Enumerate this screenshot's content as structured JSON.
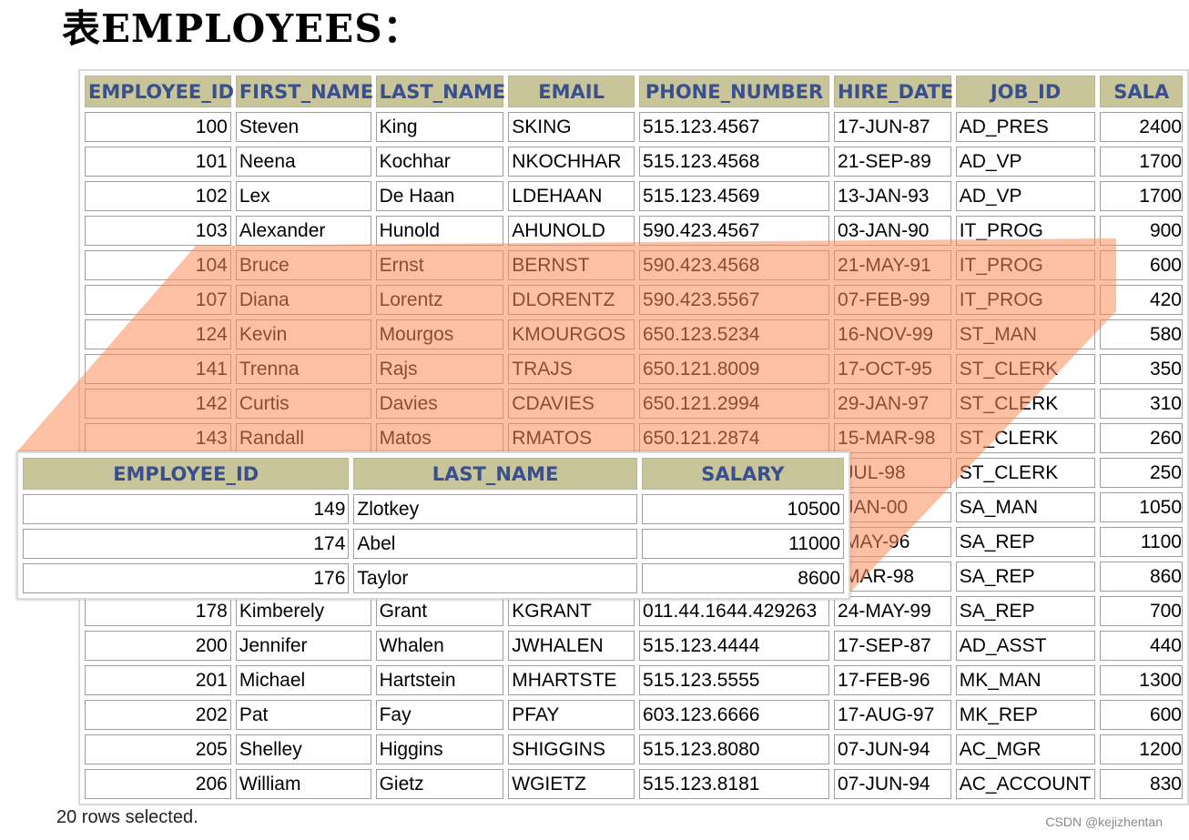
{
  "page": {
    "title": "表EMPLOYEES："
  },
  "employees_table": {
    "columns": [
      "EMPLOYEE_ID",
      "FIRST_NAME",
      "LAST_NAME",
      "EMAIL",
      "PHONE_NUMBER",
      "HIRE_DATE",
      "JOB_ID",
      "SALA"
    ],
    "rows": [
      [
        "100",
        "Steven",
        "King",
        "SKING",
        "515.123.4567",
        "17-JUN-87",
        "AD_PRES",
        "2400"
      ],
      [
        "101",
        "Neena",
        "Kochhar",
        "NKOCHHAR",
        "515.123.4568",
        "21-SEP-89",
        "AD_VP",
        "1700"
      ],
      [
        "102",
        "Lex",
        "De Haan",
        "LDEHAAN",
        "515.123.4569",
        "13-JAN-93",
        "AD_VP",
        "1700"
      ],
      [
        "103",
        "Alexander",
        "Hunold",
        "AHUNOLD",
        "590.423.4567",
        "03-JAN-90",
        "IT_PROG",
        "900"
      ],
      [
        "104",
        "Bruce",
        "Ernst",
        "BERNST",
        "590.423.4568",
        "21-MAY-91",
        "IT_PROG",
        "600"
      ],
      [
        "107",
        "Diana",
        "Lorentz",
        "DLORENTZ",
        "590.423.5567",
        "07-FEB-99",
        "IT_PROG",
        "420"
      ],
      [
        "124",
        "Kevin",
        "Mourgos",
        "KMOURGOS",
        "650.123.5234",
        "16-NOV-99",
        "ST_MAN",
        "580"
      ],
      [
        "141",
        "Trenna",
        "Rajs",
        "TRAJS",
        "650.121.8009",
        "17-OCT-95",
        "ST_CLERK",
        "350"
      ],
      [
        "142",
        "Curtis",
        "Davies",
        "CDAVIES",
        "650.121.2994",
        "29-JAN-97",
        "ST_CLERK",
        "310"
      ],
      [
        "143",
        "Randall",
        "Matos",
        "RMATOS",
        "650.121.2874",
        "15-MAR-98",
        "ST_CLERK",
        "260"
      ],
      [
        "",
        "",
        "",
        "",
        "",
        "-JUL-98",
        "ST_CLERK",
        "250"
      ],
      [
        "",
        "",
        "",
        "",
        "",
        "-JAN-00",
        "SA_MAN",
        "1050"
      ],
      [
        "",
        "",
        "",
        "",
        "",
        "-MAY-96",
        "SA_REP",
        "1100"
      ],
      [
        "",
        "",
        "",
        "",
        "",
        "-MAR-98",
        "SA_REP",
        "860"
      ],
      [
        "178",
        "Kimberely",
        "Grant",
        "KGRANT",
        "011.44.1644.429263",
        "24-MAY-99",
        "SA_REP",
        "700"
      ],
      [
        "200",
        "Jennifer",
        "Whalen",
        "JWHALEN",
        "515.123.4444",
        "17-SEP-87",
        "AD_ASST",
        "440"
      ],
      [
        "201",
        "Michael",
        "Hartstein",
        "MHARTSTE",
        "515.123.5555",
        "17-FEB-96",
        "MK_MAN",
        "1300"
      ],
      [
        "202",
        "Pat",
        "Fay",
        "PFAY",
        "603.123.6666",
        "17-AUG-97",
        "MK_REP",
        "600"
      ],
      [
        "205",
        "Shelley",
        "Higgins",
        "SHIGGINS",
        "515.123.8080",
        "07-JUN-94",
        "AC_MGR",
        "1200"
      ],
      [
        "206",
        "William",
        "Gietz",
        "WGIETZ",
        "515.123.8181",
        "07-JUN-94",
        "AC_ACCOUNT",
        "830"
      ]
    ]
  },
  "result_table": {
    "columns": [
      "EMPLOYEE_ID",
      "LAST_NAME",
      "SALARY"
    ],
    "rows": [
      [
        "149",
        "Zlotkey",
        "10500"
      ],
      [
        "174",
        "Abel",
        "11000"
      ],
      [
        "176",
        "Taylor",
        "8600"
      ]
    ]
  },
  "footer": {
    "rows_selected": "20 rows selected."
  },
  "watermark": "CSDN @kejizhentan",
  "colors": {
    "header_bg": "#c9c59a",
    "header_text": "#3a4f8e",
    "highlight": "#fa8c5a"
  }
}
